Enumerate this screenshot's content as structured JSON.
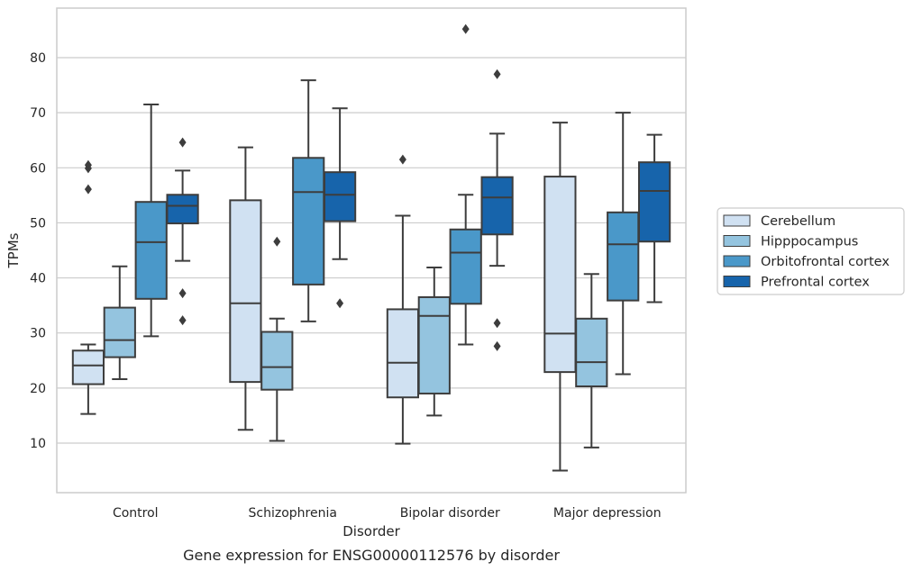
{
  "chart_data": {
    "type": "box",
    "caption": "Gene expression for ENSG00000112576 by disorder",
    "xlabel": "Disorder",
    "ylabel": "TPMs",
    "ylim": [
      1,
      89
    ],
    "yticks": [
      10,
      20,
      30,
      40,
      50,
      60,
      70,
      80
    ],
    "grid": true,
    "legend_position": "right",
    "categories": [
      "Control",
      "Schizophrenia",
      "Bipolar disorder",
      "Major depression"
    ],
    "series": [
      {
        "name": "Cerebellum",
        "color": "#d0e1f2",
        "boxes": [
          {
            "whisker_low": 15.3,
            "q1": 20.7,
            "median": 24.1,
            "q3": 26.8,
            "whisker_high": 27.9,
            "outliers": [
              56.1,
              59.9,
              60.5
            ]
          },
          {
            "whisker_low": 12.4,
            "q1": 21.1,
            "median": 35.4,
            "q3": 54.1,
            "whisker_high": 63.7,
            "outliers": []
          },
          {
            "whisker_low": 9.9,
            "q1": 18.3,
            "median": 24.6,
            "q3": 34.3,
            "whisker_high": 51.3,
            "outliers": [
              61.5
            ]
          },
          {
            "whisker_low": 5.0,
            "q1": 22.9,
            "median": 29.9,
            "q3": 58.4,
            "whisker_high": 68.2,
            "outliers": []
          }
        ]
      },
      {
        "name": "Hipppocampus",
        "color": "#94c4df",
        "boxes": [
          {
            "whisker_low": 21.6,
            "q1": 25.6,
            "median": 28.7,
            "q3": 34.6,
            "whisker_high": 42.1,
            "outliers": []
          },
          {
            "whisker_low": 10.4,
            "q1": 19.7,
            "median": 23.8,
            "q3": 30.2,
            "whisker_high": 32.6,
            "outliers": [
              46.6
            ]
          },
          {
            "whisker_low": 15.0,
            "q1": 19.0,
            "median": 33.1,
            "q3": 36.5,
            "whisker_high": 41.9,
            "outliers": []
          },
          {
            "whisker_low": 9.2,
            "q1": 20.3,
            "median": 24.7,
            "q3": 32.6,
            "whisker_high": 40.7,
            "outliers": []
          }
        ]
      },
      {
        "name": "Orbitofrontal cortex",
        "color": "#4a98c9",
        "boxes": [
          {
            "whisker_low": 29.4,
            "q1": 36.2,
            "median": 46.5,
            "q3": 53.8,
            "whisker_high": 71.5,
            "outliers": []
          },
          {
            "whisker_low": 32.1,
            "q1": 38.8,
            "median": 55.6,
            "q3": 61.8,
            "whisker_high": 75.9,
            "outliers": []
          },
          {
            "whisker_low": 27.9,
            "q1": 35.3,
            "median": 44.6,
            "q3": 48.8,
            "whisker_high": 55.1,
            "outliers": [
              85.2
            ]
          },
          {
            "whisker_low": 22.5,
            "q1": 35.9,
            "median": 46.1,
            "q3": 51.9,
            "whisker_high": 70.0,
            "outliers": []
          }
        ]
      },
      {
        "name": "Prefrontal cortex",
        "color": "#1764ab",
        "boxes": [
          {
            "whisker_low": 43.1,
            "q1": 49.9,
            "median": 53.1,
            "q3": 55.1,
            "whisker_high": 59.5,
            "outliers": [
              32.3,
              37.2,
              64.6
            ]
          },
          {
            "whisker_low": 43.4,
            "q1": 50.3,
            "median": 55.1,
            "q3": 59.2,
            "whisker_high": 70.8,
            "outliers": [
              35.4
            ]
          },
          {
            "whisker_low": 42.2,
            "q1": 47.9,
            "median": 54.6,
            "q3": 58.3,
            "whisker_high": 66.2,
            "outliers": [
              27.6,
              31.8,
              77.0
            ]
          },
          {
            "whisker_low": 35.6,
            "q1": 46.6,
            "median": 55.8,
            "q3": 61.0,
            "whisker_high": 66.0,
            "outliers": []
          }
        ]
      }
    ]
  }
}
